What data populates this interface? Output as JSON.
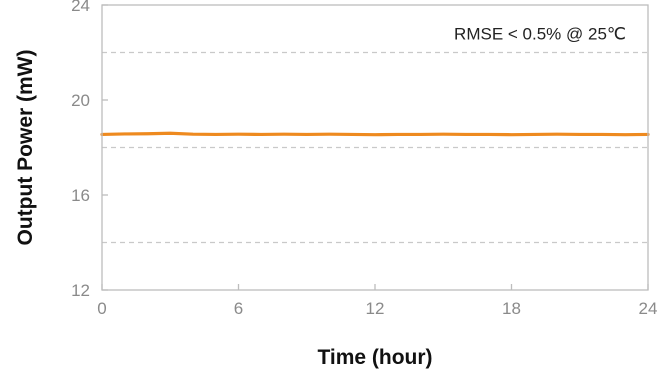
{
  "chart_data": {
    "type": "line",
    "xlabel": "Time (hour)",
    "ylabel": "Output Power (mW)",
    "xlim": [
      0,
      24
    ],
    "ylim": [
      12,
      24
    ],
    "xticks": [
      0,
      6,
      12,
      18,
      24
    ],
    "yticks": [
      12,
      16,
      20,
      24
    ],
    "reference_lines": [
      22,
      18,
      14
    ],
    "annotation": "RMSE < 0.5% @ 25℃",
    "series": [
      {
        "color": "#ee8a1f",
        "x": [
          0,
          1,
          2,
          3,
          4,
          5,
          6,
          7,
          8,
          9,
          10,
          11,
          12,
          13,
          14,
          15,
          16,
          17,
          18,
          19,
          20,
          21,
          22,
          23,
          24
        ],
        "values": [
          18.55,
          18.57,
          18.58,
          18.6,
          18.56,
          18.55,
          18.56,
          18.55,
          18.56,
          18.55,
          18.56,
          18.55,
          18.54,
          18.55,
          18.55,
          18.56,
          18.55,
          18.55,
          18.54,
          18.55,
          18.56,
          18.55,
          18.55,
          18.54,
          18.55
        ]
      }
    ],
    "colors": {
      "axis": "#bdbdbd",
      "tick_label": "#8a8a8a",
      "reference_line": "#c9c9c9"
    }
  }
}
